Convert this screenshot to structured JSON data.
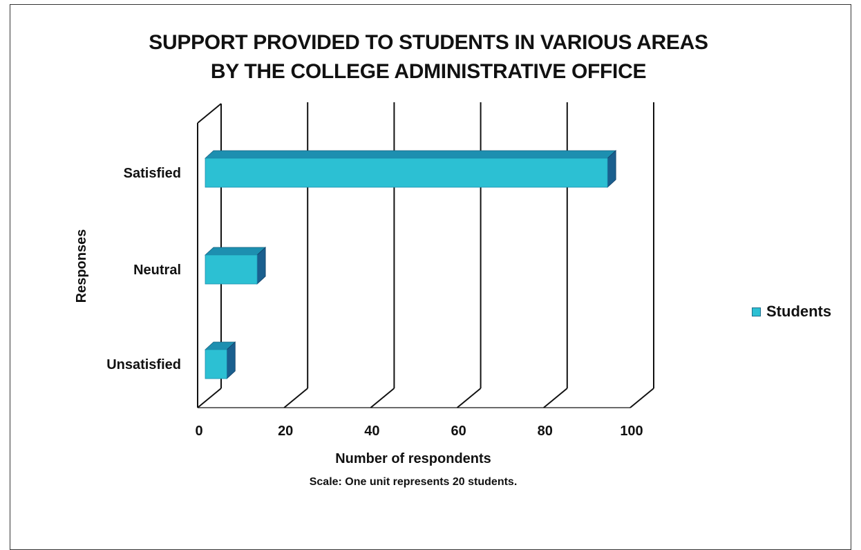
{
  "chart_data": {
    "type": "bar",
    "orientation": "horizontal",
    "title_line1": "SUPPORT PROVIDED TO STUDENTS IN VARIOUS AREAS",
    "title_line2": "BY THE COLLEGE ADMINISTRATIVE OFFICE",
    "categories": [
      "Satisfied",
      "Neutral",
      "Unsatisfied"
    ],
    "series": [
      {
        "name": "Students",
        "values": [
          93,
          12,
          5
        ]
      }
    ],
    "xlabel": "Number of respondents",
    "ylabel": "Responses",
    "note": "Scale: One unit represents 20 students.",
    "xlim": [
      0,
      100
    ],
    "xticks": [
      "0",
      "20",
      "40",
      "60",
      "80",
      "100"
    ],
    "grid": true,
    "legend_position": "right",
    "colors": {
      "bar_front": "#2cc0d3",
      "bar_top": "#1d8fb0",
      "bar_side": "#1a5f8e"
    }
  }
}
